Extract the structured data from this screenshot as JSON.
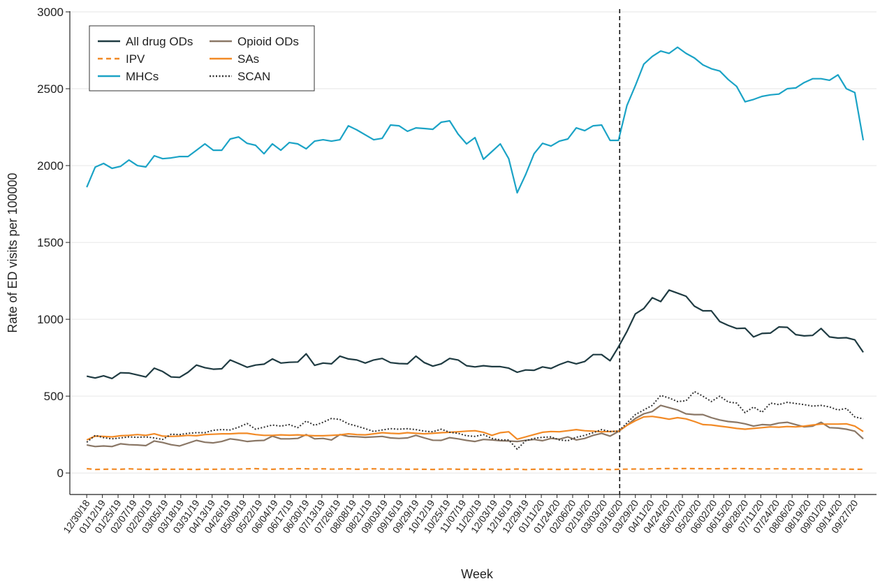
{
  "chart_data": {
    "type": "line",
    "x_label": "Week",
    "y_label": "Rate of ED visits per 100000",
    "xlim": [
      "2018-12-16",
      "2020-10-15"
    ],
    "ylim": [
      -140,
      3000
    ],
    "yticks": [
      0,
      500,
      1000,
      1500,
      2000,
      2500,
      3000
    ],
    "grid": true,
    "legend": "upper left",
    "vline": "2020-03-16",
    "xticks": [
      {
        "value": "2018-12-30",
        "label": "12/30/18"
      },
      {
        "value": "2019-01-12",
        "label": "01/12/19"
      },
      {
        "value": "2019-01-25",
        "label": "01/25/19"
      },
      {
        "value": "2019-02-07",
        "label": "02/07/19"
      },
      {
        "value": "2019-02-20",
        "label": "02/20/19"
      },
      {
        "value": "2019-03-05",
        "label": "03/05/19"
      },
      {
        "value": "2019-03-18",
        "label": "03/18/19"
      },
      {
        "value": "2019-03-31",
        "label": "03/31/19"
      },
      {
        "value": "2019-04-13",
        "label": "04/13/19"
      },
      {
        "value": "2019-04-26",
        "label": "04/26/19"
      },
      {
        "value": "2019-05-09",
        "label": "05/09/19"
      },
      {
        "value": "2019-05-22",
        "label": "05/22/19"
      },
      {
        "value": "2019-06-04",
        "label": "06/04/19"
      },
      {
        "value": "2019-06-17",
        "label": "06/17/19"
      },
      {
        "value": "2019-06-30",
        "label": "06/30/19"
      },
      {
        "value": "2019-07-13",
        "label": "07/13/19"
      },
      {
        "value": "2019-07-26",
        "label": "07/26/19"
      },
      {
        "value": "2019-08-08",
        "label": "08/08/19"
      },
      {
        "value": "2019-08-21",
        "label": "08/21/19"
      },
      {
        "value": "2019-09-03",
        "label": "09/03/19"
      },
      {
        "value": "2019-09-16",
        "label": "09/16/19"
      },
      {
        "value": "2019-09-29",
        "label": "09/29/19"
      },
      {
        "value": "2019-10-12",
        "label": "10/12/19"
      },
      {
        "value": "2019-10-25",
        "label": "10/25/19"
      },
      {
        "value": "2019-11-07",
        "label": "11/07/19"
      },
      {
        "value": "2019-11-20",
        "label": "11/20/19"
      },
      {
        "value": "2019-12-03",
        "label": "12/03/19"
      },
      {
        "value": "2019-12-16",
        "label": "12/16/19"
      },
      {
        "value": "2019-12-29",
        "label": "12/29/19"
      },
      {
        "value": "2020-01-11",
        "label": "01/11/20"
      },
      {
        "value": "2020-01-24",
        "label": "01/24/20"
      },
      {
        "value": "2020-02-06",
        "label": "02/06/20"
      },
      {
        "value": "2020-02-19",
        "label": "02/19/20"
      },
      {
        "value": "2020-03-03",
        "label": "03/03/20"
      },
      {
        "value": "2020-03-16",
        "label": "03/16/20"
      },
      {
        "value": "2020-03-29",
        "label": "03/29/20"
      },
      {
        "value": "2020-04-11",
        "label": "04/11/20"
      },
      {
        "value": "2020-04-24",
        "label": "04/24/20"
      },
      {
        "value": "2020-05-07",
        "label": "05/07/20"
      },
      {
        "value": "2020-05-20",
        "label": "05/20/20"
      },
      {
        "value": "2020-06-02",
        "label": "06/02/20"
      },
      {
        "value": "2020-06-15",
        "label": "06/15/20"
      },
      {
        "value": "2020-06-28",
        "label": "06/28/20"
      },
      {
        "value": "2020-07-11",
        "label": "07/11/20"
      },
      {
        "value": "2020-07-24",
        "label": "07/24/20"
      },
      {
        "value": "2020-08-06",
        "label": "08/06/20"
      },
      {
        "value": "2020-08-19",
        "label": "08/19/20"
      },
      {
        "value": "2020-09-01",
        "label": "09/01/20"
      },
      {
        "value": "2020-09-14",
        "label": "09/14/20"
      },
      {
        "value": "2020-09-27",
        "label": "09/27/20"
      }
    ],
    "x": [
      "2018-12-30",
      "2019-01-06",
      "2019-01-13",
      "2019-01-20",
      "2019-01-27",
      "2019-02-03",
      "2019-02-10",
      "2019-02-17",
      "2019-02-24",
      "2019-03-03",
      "2019-03-10",
      "2019-03-17",
      "2019-03-24",
      "2019-03-31",
      "2019-04-07",
      "2019-04-14",
      "2019-04-21",
      "2019-04-28",
      "2019-05-05",
      "2019-05-12",
      "2019-05-19",
      "2019-05-26",
      "2019-06-02",
      "2019-06-09",
      "2019-06-16",
      "2019-06-23",
      "2019-06-30",
      "2019-07-07",
      "2019-07-14",
      "2019-07-21",
      "2019-07-28",
      "2019-08-04",
      "2019-08-11",
      "2019-08-18",
      "2019-08-25",
      "2019-09-01",
      "2019-09-08",
      "2019-09-15",
      "2019-09-22",
      "2019-09-29",
      "2019-10-06",
      "2019-10-13",
      "2019-10-20",
      "2019-10-27",
      "2019-11-03",
      "2019-11-10",
      "2019-11-17",
      "2019-11-24",
      "2019-12-01",
      "2019-12-08",
      "2019-12-15",
      "2019-12-22",
      "2019-12-29",
      "2020-01-05",
      "2020-01-12",
      "2020-01-19",
      "2020-01-26",
      "2020-02-02",
      "2020-02-09",
      "2020-02-16",
      "2020-02-23",
      "2020-03-01",
      "2020-03-08",
      "2020-03-15",
      "2020-03-22",
      "2020-03-29",
      "2020-04-05",
      "2020-04-12",
      "2020-04-19",
      "2020-04-26",
      "2020-05-03",
      "2020-05-10",
      "2020-05-17",
      "2020-05-24",
      "2020-05-31",
      "2020-06-07",
      "2020-06-14",
      "2020-06-21",
      "2020-06-28",
      "2020-07-05",
      "2020-07-12",
      "2020-07-19",
      "2020-07-26",
      "2020-08-02",
      "2020-08-09",
      "2020-08-16",
      "2020-08-23",
      "2020-08-30",
      "2020-09-06",
      "2020-09-13",
      "2020-09-20",
      "2020-09-27",
      "2020-10-04"
    ],
    "series": [
      {
        "name": "All drug ODs",
        "color": "#1f3b42",
        "dash": "solid",
        "values": [
          630,
          618,
          632,
          615,
          652,
          650,
          638,
          625,
          682,
          660,
          625,
          622,
          655,
          702,
          685,
          675,
          678,
          735,
          712,
          688,
          702,
          708,
          742,
          715,
          720,
          722,
          775,
          700,
          715,
          710,
          760,
          742,
          735,
          715,
          735,
          745,
          718,
          712,
          710,
          760,
          718,
          695,
          710,
          745,
          735,
          698,
          690,
          698,
          692,
          692,
          682,
          655,
          670,
          668,
          690,
          680,
          705,
          725,
          710,
          725,
          770,
          770,
          730,
          820,
          920,
          1035,
          1070,
          1140,
          1115,
          1190,
          1170,
          1150,
          1085,
          1055,
          1055,
          985,
          960,
          940,
          942,
          885,
          908,
          910,
          950,
          948,
          900,
          892,
          895,
          940,
          885,
          878,
          880,
          866,
          785
        ]
      },
      {
        "name": "Opioid ODs",
        "color": "#8a7766",
        "dash": "solid",
        "values": [
          182,
          172,
          176,
          172,
          190,
          184,
          182,
          178,
          208,
          198,
          184,
          176,
          194,
          212,
          200,
          196,
          205,
          222,
          215,
          205,
          210,
          212,
          240,
          222,
          222,
          225,
          250,
          222,
          225,
          215,
          250,
          238,
          236,
          232,
          235,
          238,
          228,
          225,
          228,
          245,
          228,
          213,
          212,
          230,
          222,
          212,
          205,
          218,
          215,
          210,
          208,
          205,
          212,
          218,
          210,
          225,
          220,
          235,
          215,
          225,
          245,
          258,
          240,
          270,
          310,
          355,
          385,
          400,
          440,
          425,
          410,
          385,
          380,
          380,
          360,
          345,
          335,
          330,
          320,
          305,
          315,
          312,
          325,
          330,
          315,
          300,
          305,
          330,
          295,
          292,
          285,
          272,
          222
        ]
      },
      {
        "name": "IPV",
        "color": "#f28a26",
        "dash": "dashed",
        "values": [
          28,
          23,
          24,
          25,
          24,
          27,
          25,
          24,
          23,
          25,
          24,
          25,
          24,
          23,
          25,
          24,
          25,
          26,
          25,
          27,
          28,
          26,
          24,
          27,
          26,
          28,
          27,
          26,
          27,
          25,
          26,
          27,
          24,
          26,
          27,
          26,
          25,
          26,
          24,
          25,
          24,
          23,
          25,
          26,
          24,
          25,
          24,
          23,
          25,
          22,
          24,
          26,
          22,
          24,
          25,
          24,
          23,
          25,
          24,
          26,
          23,
          25,
          22,
          24,
          25,
          26,
          25,
          27,
          28,
          29,
          28,
          29,
          28,
          28,
          27,
          28,
          28,
          29,
          28,
          27,
          26,
          27,
          27,
          26,
          27,
          26,
          27,
          26,
          26,
          25,
          25,
          24,
          24
        ]
      },
      {
        "name": "SAs",
        "color": "#f28a26",
        "dash": "solid",
        "values": [
          215,
          240,
          238,
          235,
          242,
          245,
          250,
          245,
          255,
          240,
          238,
          240,
          245,
          242,
          250,
          252,
          255,
          255,
          258,
          258,
          250,
          245,
          245,
          248,
          246,
          248,
          245,
          242,
          242,
          245,
          248,
          255,
          250,
          248,
          255,
          262,
          258,
          256,
          262,
          258,
          255,
          258,
          262,
          265,
          268,
          272,
          275,
          265,
          245,
          262,
          268,
          220,
          235,
          250,
          265,
          270,
          268,
          275,
          282,
          275,
          272,
          268,
          270,
          272,
          310,
          340,
          365,
          368,
          360,
          350,
          360,
          352,
          335,
          315,
          312,
          305,
          298,
          290,
          285,
          290,
          295,
          300,
          298,
          302,
          300,
          305,
          312,
          318,
          318,
          318,
          320,
          305,
          270
        ]
      },
      {
        "name": "MHCs",
        "color": "#1ba3c6",
        "dash": "solid",
        "values": [
          1859,
          1990,
          2014,
          1982,
          1995,
          2036,
          2000,
          1991,
          2064,
          2045,
          2050,
          2059,
          2059,
          2100,
          2141,
          2100,
          2100,
          2173,
          2186,
          2145,
          2132,
          2077,
          2141,
          2100,
          2150,
          2141,
          2109,
          2159,
          2168,
          2159,
          2168,
          2259,
          2232,
          2200,
          2168,
          2177,
          2264,
          2259,
          2223,
          2245,
          2241,
          2236,
          2282,
          2291,
          2205,
          2141,
          2182,
          2041,
          2091,
          2141,
          2045,
          1823,
          1941,
          2077,
          2145,
          2127,
          2159,
          2173,
          2245,
          2227,
          2259,
          2264,
          2164,
          2164,
          2390,
          2520,
          2660,
          2710,
          2745,
          2730,
          2770,
          2730,
          2700,
          2655,
          2630,
          2615,
          2560,
          2515,
          2415,
          2430,
          2450,
          2460,
          2465,
          2500,
          2505,
          2540,
          2565,
          2565,
          2555,
          2590,
          2500,
          2475,
          2165
        ]
      },
      {
        "name": "SCAN",
        "color": "#333333",
        "dash": "dotted",
        "values": [
          200,
          245,
          230,
          222,
          228,
          235,
          232,
          235,
          228,
          218,
          252,
          250,
          258,
          262,
          262,
          278,
          282,
          280,
          298,
          322,
          285,
          298,
          312,
          305,
          315,
          295,
          338,
          310,
          330,
          355,
          348,
          320,
          305,
          288,
          270,
          280,
          288,
          285,
          288,
          282,
          272,
          268,
          285,
          265,
          258,
          242,
          238,
          250,
          225,
          215,
          215,
          155,
          210,
          225,
          232,
          235,
          215,
          210,
          232,
          245,
          262,
          282,
          270,
          272,
          325,
          380,
          410,
          440,
          505,
          488,
          465,
          470,
          530,
          500,
          465,
          500,
          462,
          455,
          392,
          430,
          395,
          455,
          445,
          460,
          452,
          445,
          435,
          440,
          430,
          410,
          420,
          365,
          352
        ]
      }
    ]
  }
}
